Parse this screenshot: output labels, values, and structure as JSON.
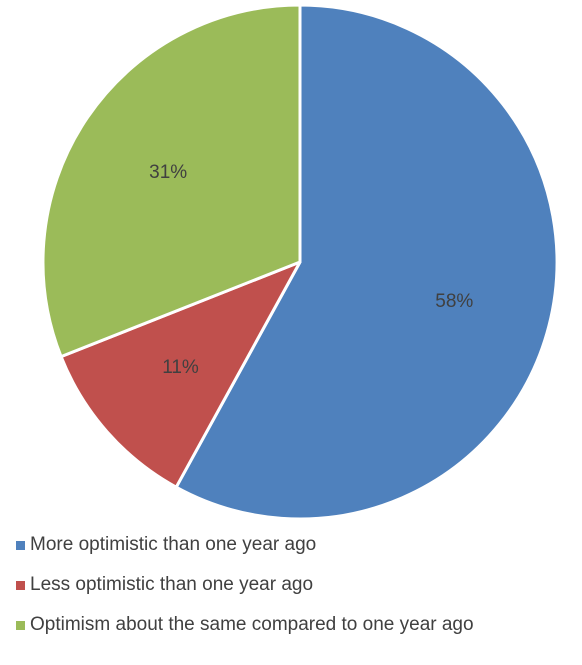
{
  "chart_data": {
    "type": "pie",
    "title": "",
    "start_angle_deg": 0,
    "direction": "clockwise",
    "legend_position": "bottom-left",
    "slices": [
      {
        "label": "More optimistic than one year ago",
        "value": 58,
        "display": "58%",
        "color": "#4f81bd"
      },
      {
        "label": "Less optimistic than one year ago",
        "value": 11,
        "display": "11%",
        "color": "#c0504d"
      },
      {
        "label": "Optimism about the same compared to one year ago",
        "value": 31,
        "display": "31%",
        "color": "#9bbb59"
      }
    ]
  }
}
